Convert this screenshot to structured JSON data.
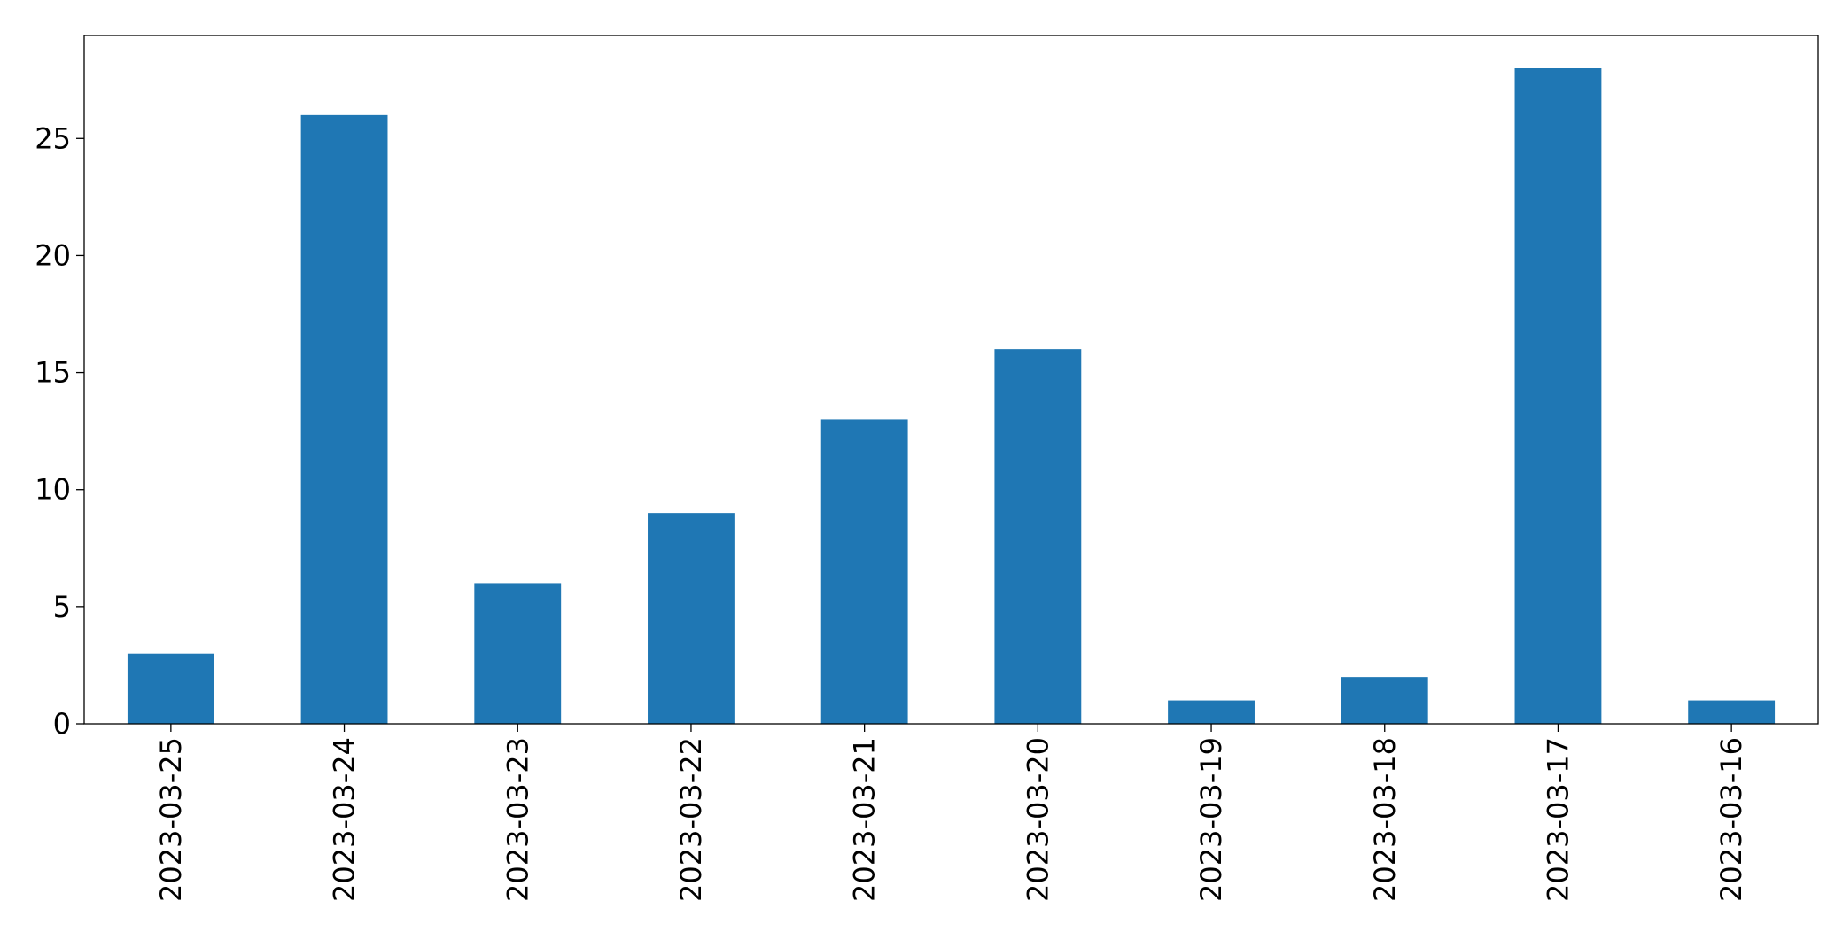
{
  "chart_data": {
    "type": "bar",
    "categories": [
      "2023-03-25",
      "2023-03-24",
      "2023-03-23",
      "2023-03-22",
      "2023-03-21",
      "2023-03-20",
      "2023-03-19",
      "2023-03-18",
      "2023-03-17",
      "2023-03-16"
    ],
    "values": [
      3,
      26,
      6,
      9,
      13,
      16,
      1,
      2,
      28,
      1
    ],
    "color": "#1f77b4",
    "ylim": [
      0,
      29.4
    ],
    "yticks": [
      0,
      5,
      10,
      15,
      20,
      25
    ],
    "grid": false
  }
}
